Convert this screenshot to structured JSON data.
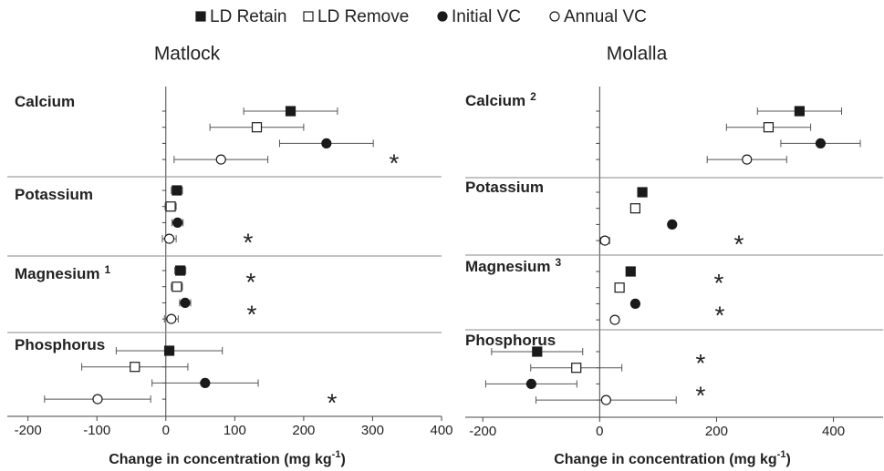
{
  "chart_data": [
    {
      "type": "dot",
      "title": "Matlock",
      "categories": [
        "Calcium",
        "Potassium",
        "Magnesium",
        "Phosphorus"
      ],
      "category_notes": [
        null,
        null,
        "1",
        null
      ],
      "series": [
        {
          "name": "LD Retain",
          "marker": "square",
          "filled": true,
          "color": "#1a1a1a",
          "values": [
            181,
            16,
            21,
            5
          ],
          "errors": [
            68,
            8,
            8,
            77
          ]
        },
        {
          "name": "LD Remove",
          "marker": "square",
          "filled": false,
          "color": "#1a1a1a",
          "values": [
            132,
            7,
            16,
            -45
          ],
          "errors": [
            68,
            8,
            8,
            77
          ]
        },
        {
          "name": "Initial VC",
          "marker": "circle",
          "filled": true,
          "color": "#1a1a1a",
          "values": [
            233,
            17,
            28,
            57
          ],
          "errors": [
            68,
            8,
            8,
            77
          ]
        },
        {
          "name": "Annual VC",
          "marker": "circle",
          "filled": false,
          "color": "#1a1a1a",
          "values": [
            80,
            5,
            8,
            -99
          ],
          "errors": [
            68,
            10,
            10,
            77
          ]
        }
      ],
      "annotations": [
        {
          "text": "*",
          "category": 0,
          "row": 3
        },
        {
          "text": "*",
          "category": 1,
          "row": 3
        },
        {
          "text": "*",
          "category": 2,
          "row": 0.5
        },
        {
          "text": "*",
          "category": 2,
          "row": 2.5
        },
        {
          "text": "*",
          "category": 3,
          "row": 3
        }
      ],
      "xlim": [
        -230,
        400
      ],
      "xticks": [
        -200,
        -100,
        0,
        100,
        200,
        300,
        400
      ],
      "x_label": "Change in concentration (mg kg",
      "x_label_sup": "-1",
      "x_label_end": ")"
    },
    {
      "type": "dot",
      "title": "Molalla",
      "categories": [
        "Calcium",
        "Potassium",
        "Magnesium",
        "Phosphorus"
      ],
      "category_notes": [
        "2",
        null,
        "3",
        null
      ],
      "series": [
        {
          "marker": "square",
          "filled": true,
          "color": "#1a1a1a",
          "values": [
            342,
            73,
            53,
            -107
          ],
          "errors": [
            72,
            6,
            6,
            78
          ]
        },
        {
          "marker": "square",
          "filled": false,
          "color": "#1a1a1a",
          "values": [
            289,
            61,
            34,
            -40
          ],
          "errors": [
            72,
            6,
            6,
            78
          ]
        },
        {
          "marker": "circle",
          "filled": true,
          "color": "#1a1a1a",
          "values": [
            378,
            124,
            61,
            -117
          ],
          "errors": [
            68,
            6,
            6,
            78
          ]
        },
        {
          "marker": "circle",
          "filled": false,
          "color": "#1a1a1a",
          "values": [
            252,
            9,
            26,
            11
          ],
          "errors": [
            68,
            8,
            6,
            120
          ]
        }
      ],
      "annotations": [
        {
          "text": "*",
          "category": 1,
          "row": 3
        },
        {
          "text": "*",
          "category": 2,
          "row": 0.5
        },
        {
          "text": "*",
          "category": 2,
          "row": 2.5
        },
        {
          "text": "*",
          "category": 3,
          "row": 0.5
        },
        {
          "text": "*",
          "category": 3,
          "row": 2.5
        }
      ],
      "xlim": [
        -230,
        485
      ],
      "xticks": [
        -200,
        0,
        200,
        400
      ],
      "x_label": "Change in concentration (mg kg",
      "x_label_sup": "-1",
      "x_label_end": ")"
    }
  ]
}
